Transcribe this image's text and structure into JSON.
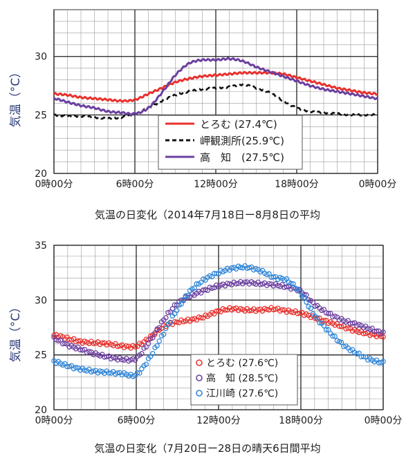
{
  "chart_data": [
    {
      "type": "line",
      "title": "気温の日変化（2014年7月18日ー8月8日の平均",
      "xlabel": "",
      "ylabel": "気温（°C）",
      "ylim": [
        20,
        34
      ],
      "xlim": [
        0,
        24
      ],
      "y_ticks": [
        "20",
        "25",
        "30"
      ],
      "x_ticks": [
        "0時00分",
        "6時00分",
        "12時00分",
        "18時00分",
        "0時00分"
      ],
      "grid": true,
      "legend_position": "bottom-center",
      "series": [
        {
          "name": "とろむ (27.4℃)",
          "color": "#e8302c",
          "style": "solid",
          "x": [
            0,
            1,
            2,
            3,
            4,
            5,
            6,
            7,
            8,
            9,
            10,
            11,
            12,
            13,
            14,
            15,
            16,
            17,
            18,
            19,
            20,
            21,
            22,
            23,
            24
          ],
          "y": [
            26.8,
            26.7,
            26.5,
            26.4,
            26.3,
            26.2,
            26.3,
            26.8,
            27.3,
            27.8,
            28.1,
            28.3,
            28.4,
            28.5,
            28.6,
            28.6,
            28.6,
            28.5,
            28.2,
            27.9,
            27.6,
            27.3,
            27.1,
            26.9,
            26.8
          ]
        },
        {
          "name": "岬観測所(25.9℃)",
          "color": "#111111",
          "style": "dashed",
          "x": [
            0,
            1,
            2,
            3,
            4,
            5,
            6,
            7,
            8,
            9,
            10,
            11,
            12,
            13,
            14,
            15,
            16,
            17,
            18,
            19,
            20,
            21,
            22,
            23,
            24
          ],
          "y": [
            25.0,
            24.9,
            24.9,
            24.8,
            24.7,
            24.8,
            25.1,
            25.6,
            26.2,
            26.7,
            27.0,
            27.2,
            27.3,
            27.4,
            27.6,
            27.3,
            26.9,
            26.2,
            25.6,
            25.3,
            25.2,
            25.1,
            25.0,
            25.0,
            25.0
          ]
        },
        {
          "name": "高　知　(27.5℃)",
          "color": "#6b3fa0",
          "style": "solid",
          "x": [
            0,
            1,
            2,
            3,
            4,
            5,
            6,
            7,
            8,
            9,
            10,
            11,
            12,
            13,
            14,
            15,
            16,
            17,
            18,
            19,
            20,
            21,
            22,
            23,
            24
          ],
          "y": [
            26.4,
            26.1,
            25.8,
            25.6,
            25.3,
            25.2,
            25.1,
            25.6,
            26.9,
            28.4,
            29.4,
            29.7,
            29.7,
            29.8,
            29.6,
            29.1,
            28.7,
            28.3,
            27.9,
            27.5,
            27.2,
            27.0,
            26.8,
            26.6,
            26.4
          ]
        }
      ]
    },
    {
      "type": "scatter",
      "title": "気温の日変化（7月20日ー28日の晴天6日間平均",
      "xlabel": "",
      "ylabel": "気温（°C）",
      "ylim": [
        20,
        35
      ],
      "xlim": [
        0,
        24
      ],
      "y_ticks": [
        "20",
        "25",
        "30",
        "35"
      ],
      "x_ticks": [
        "0時00分",
        "6時00分",
        "12時00分",
        "18時00分",
        "0時00分"
      ],
      "grid": true,
      "legend_position": "bottom-center",
      "series": [
        {
          "name": "とろむ (27.6℃)",
          "color": "#e8302c",
          "x": [
            0,
            1,
            2,
            3,
            4,
            5,
            6,
            7,
            8,
            9,
            10,
            11,
            12,
            13,
            14,
            15,
            16,
            17,
            18,
            19,
            20,
            21,
            22,
            23,
            24
          ],
          "y": [
            26.8,
            26.5,
            26.2,
            26.1,
            26.0,
            25.8,
            25.8,
            26.6,
            27.6,
            28.0,
            28.2,
            28.5,
            29.0,
            29.2,
            29.1,
            29.1,
            29.2,
            29.0,
            28.8,
            28.4,
            28.0,
            27.6,
            27.2,
            26.9,
            26.7
          ]
        },
        {
          "name": "高　知 (28.5℃)",
          "color": "#6b3fa0",
          "x": [
            0,
            1,
            2,
            3,
            4,
            5,
            6,
            7,
            8,
            9,
            10,
            11,
            12,
            13,
            14,
            15,
            16,
            17,
            18,
            19,
            20,
            21,
            22,
            23,
            24
          ],
          "y": [
            26.5,
            25.9,
            25.5,
            25.1,
            24.8,
            24.6,
            24.7,
            26.3,
            28.2,
            29.7,
            30.4,
            30.9,
            31.3,
            31.5,
            31.6,
            31.5,
            31.4,
            31.2,
            30.8,
            29.6,
            28.8,
            28.2,
            27.8,
            27.4,
            27.0
          ]
        },
        {
          "name": "江川崎 (27.6℃)",
          "color": "#2f86d8",
          "x": [
            0,
            1,
            2,
            3,
            4,
            5,
            6,
            7,
            8,
            9,
            10,
            11,
            12,
            13,
            14,
            15,
            16,
            17,
            18,
            19,
            20,
            21,
            22,
            23,
            24
          ],
          "y": [
            24.4,
            24.0,
            23.7,
            23.5,
            23.4,
            23.3,
            23.2,
            24.8,
            27.0,
            29.2,
            30.9,
            31.9,
            32.5,
            32.9,
            33.0,
            32.7,
            32.1,
            31.8,
            30.6,
            28.6,
            27.2,
            26.0,
            25.2,
            24.6,
            24.3
          ]
        }
      ]
    }
  ]
}
